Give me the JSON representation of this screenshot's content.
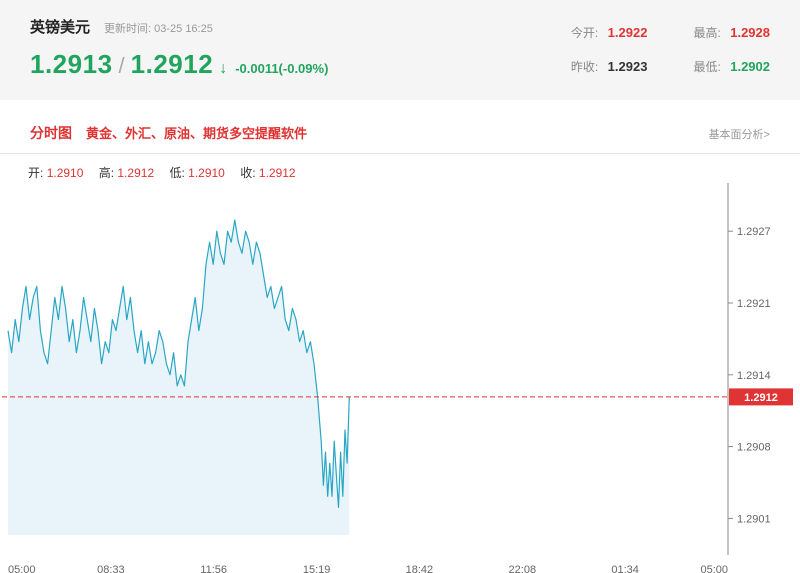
{
  "colors": {
    "red": "#e03434",
    "green": "#21a55e",
    "dark": "#333333"
  },
  "header": {
    "pair_name": "英镑美元",
    "update_time": "更新时间: 03-25 16:25",
    "bid": "1.2913",
    "slash": "/",
    "ask": "1.2912",
    "arrow": "↓",
    "change": "-0.0011(-0.09%)",
    "stats": [
      {
        "label": "今开:",
        "value": "1.2922"
      },
      {
        "label": "最高:",
        "value": "1.2928"
      },
      {
        "label": "昨收:",
        "value": "1.2923"
      },
      {
        "label": "最低:",
        "value": "1.2902"
      }
    ]
  },
  "section_bar": {
    "title": "分时图",
    "promo_link": "黄金、外汇、原油、期货多空提醒软件",
    "right_link": "基本面分析>"
  },
  "chart_data": {
    "type": "line",
    "title": "英镑美元分时图",
    "ohlc": {
      "open_label": "开:",
      "open": "1.2910",
      "high_label": "高:",
      "high": "1.2912",
      "low_label": "低:",
      "low": "1.2910",
      "close_label": "收:",
      "close": "1.2912"
    },
    "x_ticks": [
      "05:00",
      "08:33",
      "11:56",
      "15:19",
      "18:42",
      "22:08",
      "01:34",
      "05:00"
    ],
    "y_ticks": [
      {
        "value": 1.2927,
        "label": "1.2927"
      },
      {
        "value": 1.29205,
        "label": "1.2921"
      },
      {
        "value": 1.2914,
        "label": "1.2914"
      },
      {
        "value": 1.29075,
        "label": "1.2908"
      },
      {
        "value": 1.2901,
        "label": "1.2901"
      }
    ],
    "ylim": [
      1.28995,
      1.2931
    ],
    "current_price": {
      "value": 1.2912,
      "label": "1.2912"
    },
    "line_color": "#2aa6c5",
    "fill_color": "#e8f4fa",
    "grid": false,
    "legend": false,
    "series": [
      [
        0,
        1.2918
      ],
      [
        0.005,
        1.2916
      ],
      [
        0.01,
        1.2919
      ],
      [
        0.015,
        1.2917
      ],
      [
        0.02,
        1.292
      ],
      [
        0.025,
        1.2922
      ],
      [
        0.03,
        1.2919
      ],
      [
        0.035,
        1.2921
      ],
      [
        0.04,
        1.2922
      ],
      [
        0.045,
        1.2918
      ],
      [
        0.05,
        1.2916
      ],
      [
        0.055,
        1.2915
      ],
      [
        0.06,
        1.2918
      ],
      [
        0.065,
        1.2921
      ],
      [
        0.07,
        1.2919
      ],
      [
        0.075,
        1.2922
      ],
      [
        0.08,
        1.292
      ],
      [
        0.085,
        1.2917
      ],
      [
        0.09,
        1.2919
      ],
      [
        0.095,
        1.2916
      ],
      [
        0.1,
        1.2918
      ],
      [
        0.105,
        1.2921
      ],
      [
        0.11,
        1.2919
      ],
      [
        0.115,
        1.2917
      ],
      [
        0.12,
        1.292
      ],
      [
        0.125,
        1.2918
      ],
      [
        0.13,
        1.2915
      ],
      [
        0.135,
        1.2917
      ],
      [
        0.14,
        1.2916
      ],
      [
        0.145,
        1.2919
      ],
      [
        0.15,
        1.2918
      ],
      [
        0.155,
        1.292
      ],
      [
        0.16,
        1.2922
      ],
      [
        0.165,
        1.2919
      ],
      [
        0.17,
        1.2921
      ],
      [
        0.175,
        1.2918
      ],
      [
        0.18,
        1.2916
      ],
      [
        0.185,
        1.2918
      ],
      [
        0.19,
        1.2915
      ],
      [
        0.195,
        1.2917
      ],
      [
        0.2,
        1.2915
      ],
      [
        0.205,
        1.2916
      ],
      [
        0.21,
        1.2918
      ],
      [
        0.215,
        1.2917
      ],
      [
        0.22,
        1.2915
      ],
      [
        0.225,
        1.2914
      ],
      [
        0.23,
        1.2916
      ],
      [
        0.235,
        1.2913
      ],
      [
        0.24,
        1.2914
      ],
      [
        0.245,
        1.2913
      ],
      [
        0.25,
        1.2917
      ],
      [
        0.255,
        1.2919
      ],
      [
        0.26,
        1.2921
      ],
      [
        0.265,
        1.2918
      ],
      [
        0.27,
        1.292
      ],
      [
        0.275,
        1.2924
      ],
      [
        0.28,
        1.2926
      ],
      [
        0.285,
        1.2924
      ],
      [
        0.29,
        1.2927
      ],
      [
        0.295,
        1.2925
      ],
      [
        0.3,
        1.2924
      ],
      [
        0.305,
        1.2927
      ],
      [
        0.31,
        1.2926
      ],
      [
        0.315,
        1.2928
      ],
      [
        0.32,
        1.2926
      ],
      [
        0.325,
        1.2925
      ],
      [
        0.33,
        1.2927
      ],
      [
        0.335,
        1.2926
      ],
      [
        0.34,
        1.2924
      ],
      [
        0.345,
        1.2926
      ],
      [
        0.35,
        1.2925
      ],
      [
        0.355,
        1.2923
      ],
      [
        0.36,
        1.2921
      ],
      [
        0.365,
        1.2922
      ],
      [
        0.37,
        1.292
      ],
      [
        0.375,
        1.2921
      ],
      [
        0.38,
        1.2922
      ],
      [
        0.385,
        1.2919
      ],
      [
        0.39,
        1.2918
      ],
      [
        0.395,
        1.292
      ],
      [
        0.4,
        1.2919
      ],
      [
        0.405,
        1.2917
      ],
      [
        0.41,
        1.2918
      ],
      [
        0.415,
        1.2916
      ],
      [
        0.42,
        1.2917
      ],
      [
        0.425,
        1.2915
      ],
      [
        0.43,
        1.2912
      ],
      [
        0.435,
        1.2908
      ],
      [
        0.438,
        1.2904
      ],
      [
        0.441,
        1.2907
      ],
      [
        0.444,
        1.2903
      ],
      [
        0.447,
        1.2906
      ],
      [
        0.45,
        1.2903
      ],
      [
        0.453,
        1.2908
      ],
      [
        0.456,
        1.2905
      ],
      [
        0.459,
        1.2902
      ],
      [
        0.462,
        1.2907
      ],
      [
        0.465,
        1.2903
      ],
      [
        0.468,
        1.2909
      ],
      [
        0.471,
        1.2906
      ],
      [
        0.474,
        1.2912
      ]
    ]
  }
}
